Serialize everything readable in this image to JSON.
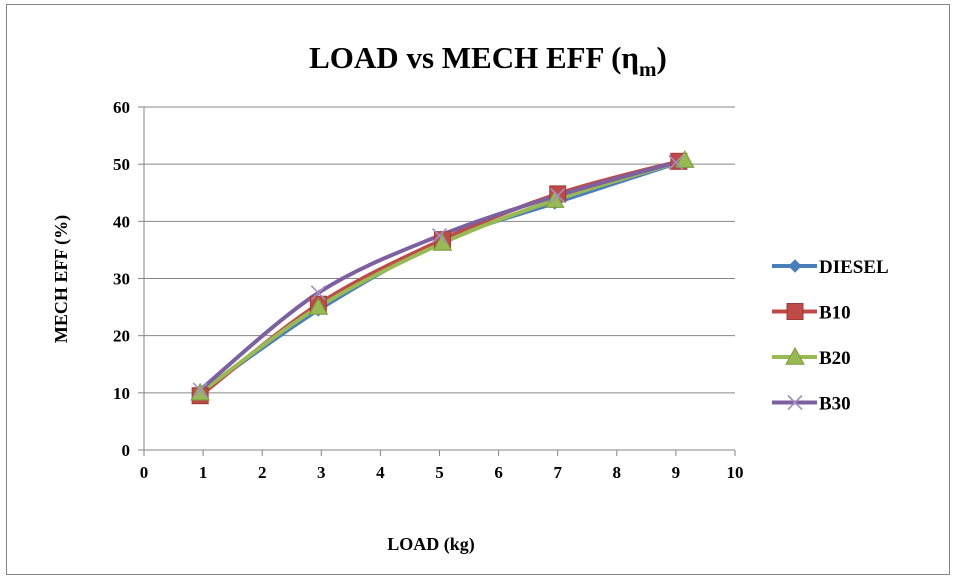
{
  "chart_data": {
    "type": "line",
    "title": "LOAD vs MECH EFF (",
    "title_symbol": "η",
    "title_subscript": "m",
    "title_close": ")",
    "xlabel": "LOAD (kg)",
    "ylabel": "MECH EFF (%)",
    "xlim": [
      0,
      10
    ],
    "ylim": [
      0,
      60
    ],
    "x_ticks": [
      "0",
      "1",
      "2",
      "3",
      "4",
      "5",
      "6",
      "7",
      "8",
      "9",
      "10"
    ],
    "y_ticks": [
      "0",
      "10",
      "20",
      "30",
      "40",
      "50",
      "60"
    ],
    "grid": "horizontal",
    "legend_position": "right",
    "series": [
      {
        "name": "DIESEL",
        "color": "#4a7ebb",
        "marker": "diamond",
        "points": [
          [
            0.95,
            10.0
          ],
          [
            2.95,
            24.5
          ],
          [
            5.05,
            36.5
          ],
          [
            6.95,
            43.2
          ],
          [
            9.05,
            50.3
          ]
        ]
      },
      {
        "name": "B10",
        "color": "#be4b48",
        "marker": "square",
        "points": [
          [
            0.95,
            9.5
          ],
          [
            2.95,
            25.5
          ],
          [
            5.05,
            36.8
          ],
          [
            7.0,
            44.8
          ],
          [
            9.05,
            50.5
          ]
        ]
      },
      {
        "name": "B20",
        "color": "#98b954",
        "marker": "triangle",
        "points": [
          [
            0.95,
            10.0
          ],
          [
            2.95,
            25.0
          ],
          [
            5.05,
            36.2
          ],
          [
            6.95,
            43.7
          ],
          [
            9.15,
            50.7
          ]
        ]
      },
      {
        "name": "B30",
        "color": "#7d60a0",
        "marker": "x",
        "points": [
          [
            0.95,
            10.5
          ],
          [
            2.95,
            27.5
          ],
          [
            5.0,
            37.5
          ],
          [
            7.0,
            44.5
          ],
          [
            9.0,
            50.3
          ]
        ]
      }
    ]
  }
}
